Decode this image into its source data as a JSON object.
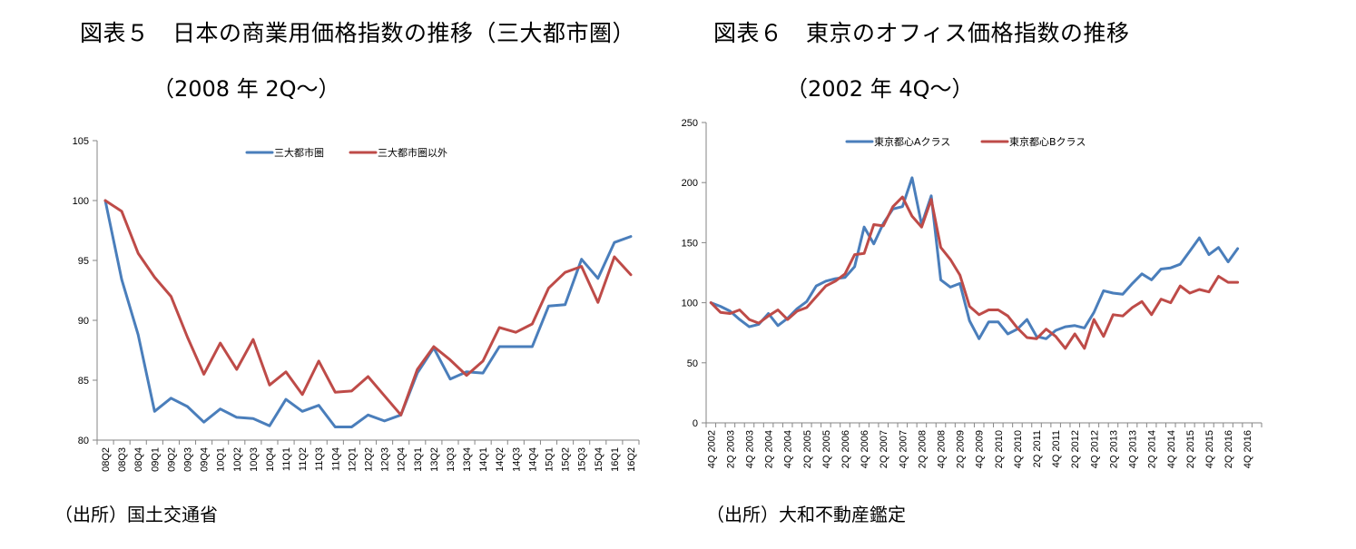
{
  "titles": {
    "fig5_title": "図表５　日本の商業用価格指数の推移（三大都市圏）",
    "fig5_subtitle": "（2008 年 2Q～）",
    "fig6_title": "図表６　東京のオフィス価格指数の推移",
    "fig6_subtitle": "（2002 年 4Q～）",
    "fig5_source": "（出所）国土交通省",
    "fig6_source": "（出所）大和不動産鑑定"
  },
  "chart_data": [
    {
      "type": "line",
      "title": "日本の商業用価格指数の推移（三大都市圏）",
      "xlabel": "",
      "ylabel": "",
      "ylim": [
        80,
        105
      ],
      "yticks": [
        80,
        85,
        90,
        95,
        100,
        105
      ],
      "grid": false,
      "legend": "top-center",
      "categories": [
        "08Q2",
        "08Q3",
        "08Q4",
        "09Q1",
        "09Q2",
        "09Q3",
        "09Q4",
        "10Q1",
        "10Q2",
        "10Q3",
        "10Q4",
        "11Q1",
        "11Q2",
        "11Q3",
        "11Q4",
        "12Q1",
        "12Q2",
        "12Q3",
        "12Q4",
        "13Q1",
        "13Q2",
        "13Q3",
        "13Q4",
        "14Q1",
        "14Q2",
        "14Q3",
        "14Q4",
        "15Q1",
        "15Q2",
        "15Q3",
        "15Q4",
        "16Q1",
        "16Q2"
      ],
      "series": [
        {
          "name": "三大都市圏",
          "color": "#4a7ebb",
          "values": [
            100.0,
            93.4,
            88.8,
            82.4,
            83.5,
            82.8,
            81.5,
            82.6,
            81.9,
            81.8,
            81.2,
            83.4,
            82.4,
            82.9,
            81.1,
            81.1,
            82.1,
            81.6,
            82.1,
            85.6,
            87.7,
            85.1,
            85.7,
            85.6,
            87.8,
            87.8,
            87.8,
            91.2,
            91.3,
            95.1,
            93.5,
            96.5,
            97.0
          ]
        },
        {
          "name": "三大都市圏以外",
          "color": "#be4b48",
          "values": [
            100.0,
            99.1,
            95.6,
            93.6,
            92.0,
            88.6,
            85.5,
            88.1,
            85.9,
            88.4,
            84.6,
            85.7,
            83.8,
            86.6,
            84.0,
            84.1,
            85.3,
            83.7,
            82.1,
            85.9,
            87.8,
            86.7,
            85.4,
            86.6,
            89.4,
            89.0,
            89.7,
            92.7,
            94.0,
            94.5,
            91.5,
            95.3,
            93.8
          ]
        }
      ]
    },
    {
      "type": "line",
      "title": "東京のオフィス価格指数の推移",
      "xlabel": "",
      "ylabel": "",
      "ylim": [
        0,
        250
      ],
      "yticks": [
        0,
        50,
        100,
        150,
        200,
        250
      ],
      "grid": false,
      "legend": "top-center",
      "tick_labels": [
        "4Q 2002",
        "2Q 2003",
        "4Q 2003",
        "2Q 2004",
        "4Q 2004",
        "2Q 2005",
        "4Q 2005",
        "2Q 2006",
        "4Q 2006",
        "2Q 2007",
        "4Q 2007",
        "2Q 2008",
        "4Q 2008",
        "2Q 2009",
        "4Q 2009",
        "2Q 2010",
        "4Q 2010",
        "2Q 2011",
        "4Q 2011",
        "2Q 2012",
        "4Q 2012",
        "2Q 2013",
        "4Q 2013",
        "2Q 2014",
        "4Q 2014",
        "2Q 2015",
        "4Q 2015",
        "2Q 2016",
        "4Q 2016"
      ],
      "x_period": "quarterly from 4Q 2002 to 3Q 2016",
      "series": [
        {
          "name": "東京都心Aクラス",
          "color": "#4a7ebb",
          "values": [
            100,
            97,
            93,
            86,
            80,
            82,
            91,
            81,
            87,
            95,
            101,
            114,
            118,
            120,
            121,
            130,
            163,
            149,
            166,
            178,
            180,
            204,
            165,
            189,
            119,
            113,
            116,
            85,
            70,
            84,
            84,
            74,
            78,
            86,
            72,
            70,
            77,
            80,
            81,
            79,
            92,
            110,
            108,
            107,
            116,
            124,
            119,
            128,
            129,
            132,
            143,
            154,
            140,
            146,
            134,
            145
          ]
        },
        {
          "name": "東京都心Bクラス",
          "color": "#be4b48",
          "values": [
            100,
            92,
            91,
            94,
            86,
            83,
            89,
            94,
            86,
            93,
            96,
            105,
            114,
            118,
            124,
            140,
            141,
            165,
            164,
            180,
            188,
            172,
            163,
            186,
            146,
            136,
            123,
            97,
            90,
            94,
            94,
            89,
            79,
            71,
            70,
            78,
            72,
            62,
            74,
            62,
            86,
            72,
            90,
            89,
            96,
            101,
            90,
            103,
            100,
            114,
            108,
            111,
            109,
            122,
            117,
            117
          ]
        }
      ]
    }
  ]
}
